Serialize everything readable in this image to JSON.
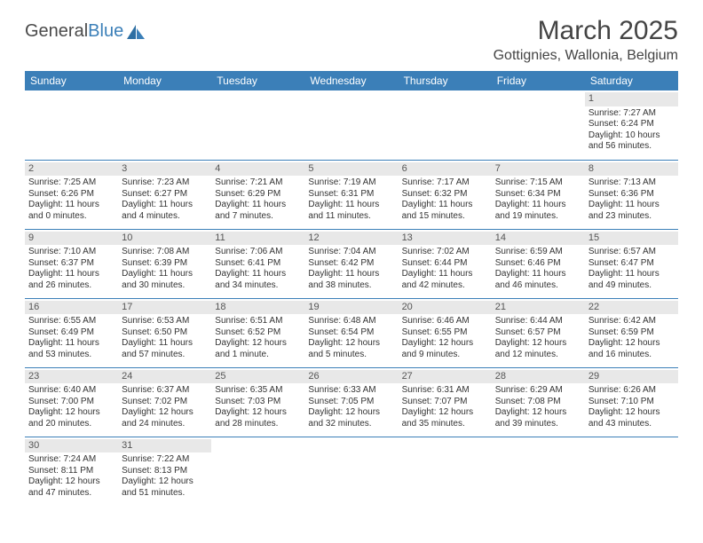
{
  "logo": {
    "text_a": "General",
    "text_b": "Blue"
  },
  "title": "March 2025",
  "location": "Gottignies, Wallonia, Belgium",
  "colors": {
    "header_bg": "#3b7fb8",
    "header_text": "#ffffff",
    "row_border": "#3b7fb8",
    "daynum_bg": "#e8e8e8",
    "body_text": "#333333",
    "logo_gray": "#4a4a4a",
    "logo_blue": "#3b7fb8"
  },
  "weekdays": [
    "Sunday",
    "Monday",
    "Tuesday",
    "Wednesday",
    "Thursday",
    "Friday",
    "Saturday"
  ],
  "weeks": [
    [
      {
        "n": "",
        "sr": "",
        "ss": "",
        "dl": ""
      },
      {
        "n": "",
        "sr": "",
        "ss": "",
        "dl": ""
      },
      {
        "n": "",
        "sr": "",
        "ss": "",
        "dl": ""
      },
      {
        "n": "",
        "sr": "",
        "ss": "",
        "dl": ""
      },
      {
        "n": "",
        "sr": "",
        "ss": "",
        "dl": ""
      },
      {
        "n": "",
        "sr": "",
        "ss": "",
        "dl": ""
      },
      {
        "n": "1",
        "sr": "Sunrise: 7:27 AM",
        "ss": "Sunset: 6:24 PM",
        "dl": "Daylight: 10 hours and 56 minutes."
      }
    ],
    [
      {
        "n": "2",
        "sr": "Sunrise: 7:25 AM",
        "ss": "Sunset: 6:26 PM",
        "dl": "Daylight: 11 hours and 0 minutes."
      },
      {
        "n": "3",
        "sr": "Sunrise: 7:23 AM",
        "ss": "Sunset: 6:27 PM",
        "dl": "Daylight: 11 hours and 4 minutes."
      },
      {
        "n": "4",
        "sr": "Sunrise: 7:21 AM",
        "ss": "Sunset: 6:29 PM",
        "dl": "Daylight: 11 hours and 7 minutes."
      },
      {
        "n": "5",
        "sr": "Sunrise: 7:19 AM",
        "ss": "Sunset: 6:31 PM",
        "dl": "Daylight: 11 hours and 11 minutes."
      },
      {
        "n": "6",
        "sr": "Sunrise: 7:17 AM",
        "ss": "Sunset: 6:32 PM",
        "dl": "Daylight: 11 hours and 15 minutes."
      },
      {
        "n": "7",
        "sr": "Sunrise: 7:15 AM",
        "ss": "Sunset: 6:34 PM",
        "dl": "Daylight: 11 hours and 19 minutes."
      },
      {
        "n": "8",
        "sr": "Sunrise: 7:13 AM",
        "ss": "Sunset: 6:36 PM",
        "dl": "Daylight: 11 hours and 23 minutes."
      }
    ],
    [
      {
        "n": "9",
        "sr": "Sunrise: 7:10 AM",
        "ss": "Sunset: 6:37 PM",
        "dl": "Daylight: 11 hours and 26 minutes."
      },
      {
        "n": "10",
        "sr": "Sunrise: 7:08 AM",
        "ss": "Sunset: 6:39 PM",
        "dl": "Daylight: 11 hours and 30 minutes."
      },
      {
        "n": "11",
        "sr": "Sunrise: 7:06 AM",
        "ss": "Sunset: 6:41 PM",
        "dl": "Daylight: 11 hours and 34 minutes."
      },
      {
        "n": "12",
        "sr": "Sunrise: 7:04 AM",
        "ss": "Sunset: 6:42 PM",
        "dl": "Daylight: 11 hours and 38 minutes."
      },
      {
        "n": "13",
        "sr": "Sunrise: 7:02 AM",
        "ss": "Sunset: 6:44 PM",
        "dl": "Daylight: 11 hours and 42 minutes."
      },
      {
        "n": "14",
        "sr": "Sunrise: 6:59 AM",
        "ss": "Sunset: 6:46 PM",
        "dl": "Daylight: 11 hours and 46 minutes."
      },
      {
        "n": "15",
        "sr": "Sunrise: 6:57 AM",
        "ss": "Sunset: 6:47 PM",
        "dl": "Daylight: 11 hours and 49 minutes."
      }
    ],
    [
      {
        "n": "16",
        "sr": "Sunrise: 6:55 AM",
        "ss": "Sunset: 6:49 PM",
        "dl": "Daylight: 11 hours and 53 minutes."
      },
      {
        "n": "17",
        "sr": "Sunrise: 6:53 AM",
        "ss": "Sunset: 6:50 PM",
        "dl": "Daylight: 11 hours and 57 minutes."
      },
      {
        "n": "18",
        "sr": "Sunrise: 6:51 AM",
        "ss": "Sunset: 6:52 PM",
        "dl": "Daylight: 12 hours and 1 minute."
      },
      {
        "n": "19",
        "sr": "Sunrise: 6:48 AM",
        "ss": "Sunset: 6:54 PM",
        "dl": "Daylight: 12 hours and 5 minutes."
      },
      {
        "n": "20",
        "sr": "Sunrise: 6:46 AM",
        "ss": "Sunset: 6:55 PM",
        "dl": "Daylight: 12 hours and 9 minutes."
      },
      {
        "n": "21",
        "sr": "Sunrise: 6:44 AM",
        "ss": "Sunset: 6:57 PM",
        "dl": "Daylight: 12 hours and 12 minutes."
      },
      {
        "n": "22",
        "sr": "Sunrise: 6:42 AM",
        "ss": "Sunset: 6:59 PM",
        "dl": "Daylight: 12 hours and 16 minutes."
      }
    ],
    [
      {
        "n": "23",
        "sr": "Sunrise: 6:40 AM",
        "ss": "Sunset: 7:00 PM",
        "dl": "Daylight: 12 hours and 20 minutes."
      },
      {
        "n": "24",
        "sr": "Sunrise: 6:37 AM",
        "ss": "Sunset: 7:02 PM",
        "dl": "Daylight: 12 hours and 24 minutes."
      },
      {
        "n": "25",
        "sr": "Sunrise: 6:35 AM",
        "ss": "Sunset: 7:03 PM",
        "dl": "Daylight: 12 hours and 28 minutes."
      },
      {
        "n": "26",
        "sr": "Sunrise: 6:33 AM",
        "ss": "Sunset: 7:05 PM",
        "dl": "Daylight: 12 hours and 32 minutes."
      },
      {
        "n": "27",
        "sr": "Sunrise: 6:31 AM",
        "ss": "Sunset: 7:07 PM",
        "dl": "Daylight: 12 hours and 35 minutes."
      },
      {
        "n": "28",
        "sr": "Sunrise: 6:29 AM",
        "ss": "Sunset: 7:08 PM",
        "dl": "Daylight: 12 hours and 39 minutes."
      },
      {
        "n": "29",
        "sr": "Sunrise: 6:26 AM",
        "ss": "Sunset: 7:10 PM",
        "dl": "Daylight: 12 hours and 43 minutes."
      }
    ],
    [
      {
        "n": "30",
        "sr": "Sunrise: 7:24 AM",
        "ss": "Sunset: 8:11 PM",
        "dl": "Daylight: 12 hours and 47 minutes."
      },
      {
        "n": "31",
        "sr": "Sunrise: 7:22 AM",
        "ss": "Sunset: 8:13 PM",
        "dl": "Daylight: 12 hours and 51 minutes."
      },
      {
        "n": "",
        "sr": "",
        "ss": "",
        "dl": ""
      },
      {
        "n": "",
        "sr": "",
        "ss": "",
        "dl": ""
      },
      {
        "n": "",
        "sr": "",
        "ss": "",
        "dl": ""
      },
      {
        "n": "",
        "sr": "",
        "ss": "",
        "dl": ""
      },
      {
        "n": "",
        "sr": "",
        "ss": "",
        "dl": ""
      }
    ]
  ]
}
